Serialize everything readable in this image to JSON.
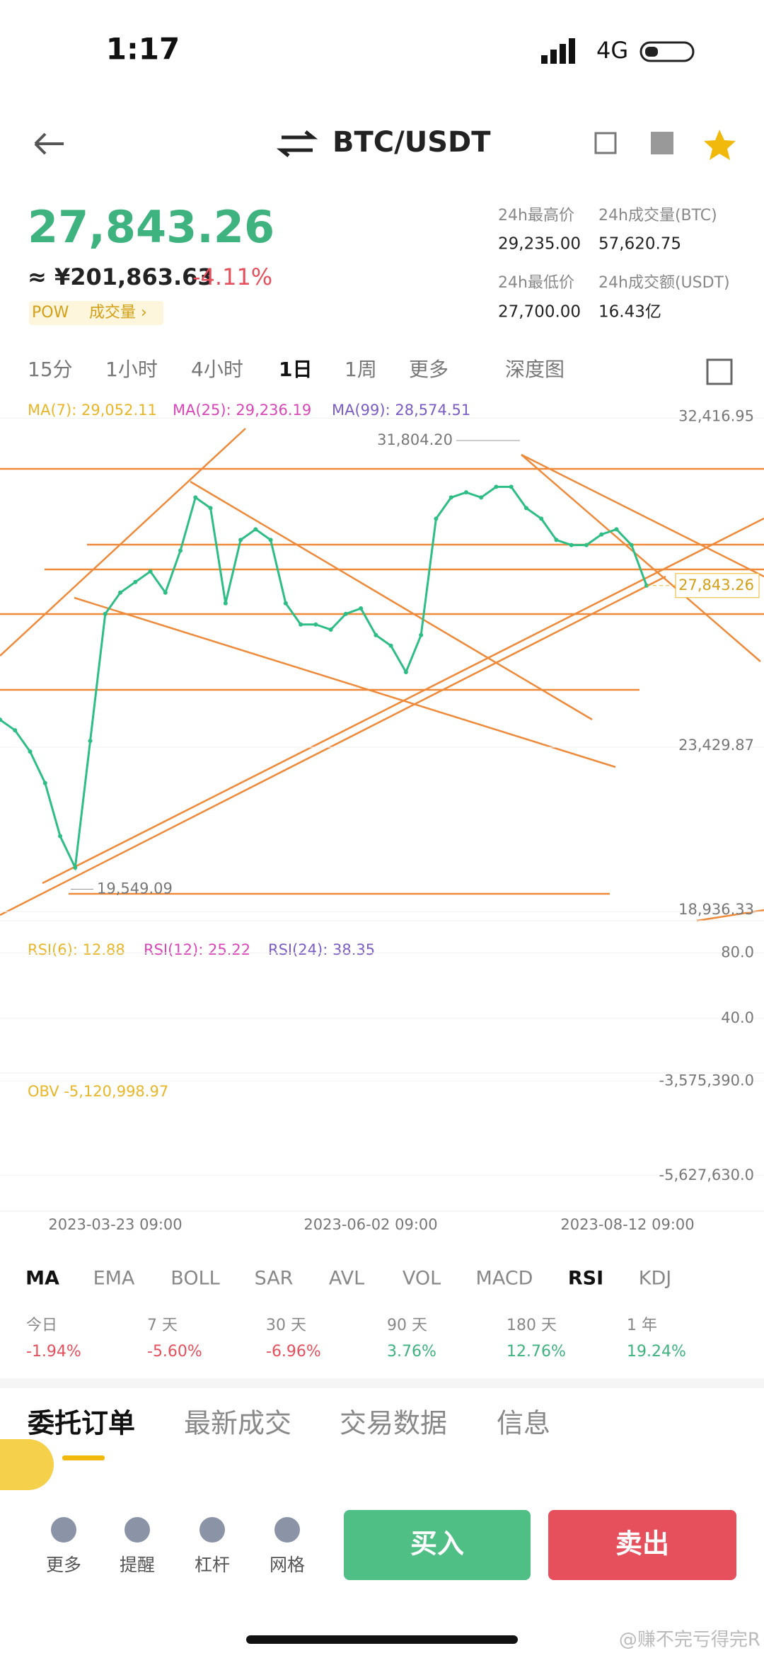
{
  "status": {
    "time": "1:17",
    "network": "4G"
  },
  "header": {
    "title": "BTC/USDT"
  },
  "ticker": {
    "price": "27,843.26",
    "cny": "≈ ¥201,863.63",
    "change": "-4.11%",
    "tag": "POW",
    "volume_link": "成交量 ›"
  },
  "stats": [
    {
      "label": "24h最高价",
      "value": "29,235.00"
    },
    {
      "label": "24h成交量(BTC)",
      "value": "57,620.75"
    },
    {
      "label": "24h最低价",
      "value": "27,700.00"
    },
    {
      "label": "24h成交额(USDT)",
      "value": "16.43亿"
    }
  ],
  "intervals": [
    "15分",
    "1小时",
    "4小时",
    "1日",
    "1周",
    "更多",
    "深度图"
  ],
  "chart_data": [
    {
      "type": "line",
      "legend": [
        {
          "text": "MA(7): 29,052.11",
          "color": "#e8b628"
        },
        {
          "text": "MA(25): 29,236.19",
          "color": "#d946b8"
        },
        {
          "text": "MA(99): 28,574.51",
          "color": "#7b5cc4"
        }
      ],
      "color": "#2ebd85",
      "ylim": [
        18689,
        32908
      ],
      "yticks": [
        {
          "value": 32416.95,
          "label": "32,416.95"
        },
        {
          "value": 23429.87,
          "label": "23,429.87"
        },
        {
          "value": 18936.33,
          "label": "18,936.33"
        }
      ],
      "categories": [
        null,
        null,
        null,
        null,
        null,
        null,
        null,
        null,
        null,
        null,
        null,
        null,
        null,
        null,
        null,
        null,
        null,
        null,
        null,
        null,
        null,
        null,
        null,
        null,
        null,
        null,
        null,
        null,
        null,
        null,
        null,
        null,
        null,
        null,
        null,
        null,
        null,
        null,
        null,
        null,
        null,
        null,
        null,
        null
      ],
      "values": [
        24180,
        23890,
        23310,
        22450,
        21000,
        20140,
        23600,
        27070,
        27650,
        27940,
        28230,
        27650,
        28800,
        30250,
        29960,
        27360,
        29090,
        29380,
        29090,
        27360,
        26780,
        26780,
        26640,
        27070,
        27220,
        26490,
        26200,
        25480,
        26490,
        29670,
        30250,
        30390,
        30250,
        30540,
        30540,
        29960,
        29670,
        29090,
        28950,
        28950,
        29240,
        29380,
        28950,
        27843.26
      ],
      "annotations": [
        {
          "value": 31804.2,
          "label": "31,804.20"
        },
        {
          "value": 19549.09,
          "label": "19,549.09"
        }
      ],
      "current_price": {
        "value": 27843.26,
        "label": "27,843.26"
      },
      "x_labels": [
        "2023-03-23 09:00",
        "2023-06-02 09:00",
        "2023-08-12 09:00"
      ]
    },
    {
      "type": "line",
      "legend": [
        {
          "text": "RSI(6): 12.88",
          "color": "#e8b628"
        },
        {
          "text": "RSI(12): 25.22",
          "color": "#d946b8"
        },
        {
          "text": "RSI(24): 38.35",
          "color": "#7b5cc4"
        }
      ],
      "ylim": [
        6.6,
        99.7
      ],
      "yticks": [
        {
          "value": 80,
          "label": "80.0"
        },
        {
          "value": 40,
          "label": "40.0"
        }
      ]
    },
    {
      "type": "line",
      "legend": [
        {
          "text": "OBV -5,120,998.97",
          "color": "#e8b628"
        }
      ],
      "ylim": [
        -6400000,
        -3400000
      ],
      "yticks": [
        {
          "value": -3575390,
          "label": "-3,575,390.0"
        },
        {
          "value": -5627630,
          "label": "-5,627,630.0"
        }
      ]
    }
  ],
  "indicators": [
    "MA",
    "EMA",
    "BOLL",
    "SAR",
    "AVL",
    "VOL",
    "MACD",
    "RSI",
    "KDJ"
  ],
  "periods": [
    {
      "label": "今日",
      "value": "-1.94%"
    },
    {
      "label": "7 天",
      "value": "-5.60%"
    },
    {
      "label": "30 天",
      "value": "-6.96%"
    },
    {
      "label": "90 天",
      "value": "3.76%"
    },
    {
      "label": "180 天",
      "value": "12.76%"
    },
    {
      "label": "1 年",
      "value": "19.24%"
    }
  ],
  "order_tabs": [
    "委托订单",
    "最新成交",
    "交易数据",
    "信息"
  ],
  "nav": [
    "更多",
    "提醒",
    "杠杆",
    "网格"
  ],
  "buttons": {
    "buy": "买入",
    "sell": "卖出"
  },
  "watermark": "@赚不完亏得完R"
}
